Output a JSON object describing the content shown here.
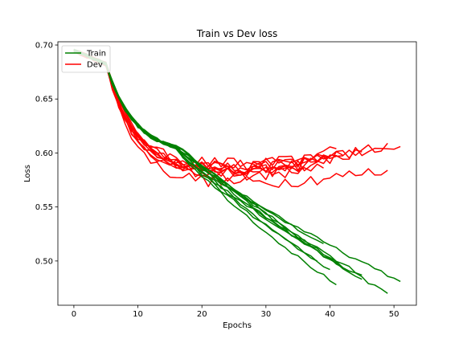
{
  "chart_data": {
    "type": "line",
    "title": "Train vs Dev loss",
    "xlabel": "Epochs",
    "ylabel": "Loss",
    "xlim": [
      -2.5,
      53.5
    ],
    "ylim": [
      0.459,
      0.703
    ],
    "xticks": [
      0,
      10,
      20,
      30,
      40,
      50
    ],
    "yticks": [
      0.5,
      0.55,
      0.6,
      0.65,
      0.7
    ],
    "xtick_labels": [
      "0",
      "10",
      "20",
      "30",
      "40",
      "50"
    ],
    "ytick_labels": [
      "0.50",
      "0.55",
      "0.60",
      "0.65",
      "0.70"
    ],
    "grid": false,
    "legend": {
      "position": "top-left",
      "entries": [
        {
          "label": "Train",
          "color": "#008000"
        },
        {
          "label": "Dev",
          "color": "#ff0000"
        }
      ]
    },
    "colors": {
      "train": "#008000",
      "dev": "#ff0000"
    },
    "train_runs": [
      {
        "end_epoch": 41,
        "final_loss": 0.478
      },
      {
        "end_epoch": 45,
        "final_loss": 0.483
      },
      {
        "end_epoch": 49,
        "final_loss": 0.47
      },
      {
        "end_epoch": 51,
        "final_loss": 0.481
      },
      {
        "end_epoch": 40,
        "final_loss": 0.492
      },
      {
        "end_epoch": 42,
        "final_loss": 0.494
      },
      {
        "end_epoch": 38,
        "final_loss": 0.5
      },
      {
        "end_epoch": 39,
        "final_loss": 0.516
      },
      {
        "end_epoch": 45,
        "final_loss": 0.487
      },
      {
        "end_epoch": 36,
        "final_loss": 0.517
      }
    ],
    "dev_runs": [
      {
        "end_epoch": 51,
        "min_loss": 0.589,
        "final_loss": 0.606
      },
      {
        "end_epoch": 49,
        "min_loss": 0.588,
        "final_loss": 0.609
      },
      {
        "end_epoch": 45,
        "min_loss": 0.586,
        "final_loss": 0.601
      },
      {
        "end_epoch": 41,
        "min_loss": 0.585,
        "final_loss": 0.604
      },
      {
        "end_epoch": 40,
        "min_loss": 0.578,
        "final_loss": 0.596
      },
      {
        "end_epoch": 49,
        "min_loss": 0.572,
        "final_loss": 0.584
      },
      {
        "end_epoch": 42,
        "min_loss": 0.581,
        "final_loss": 0.598
      },
      {
        "end_epoch": 38,
        "min_loss": 0.583,
        "final_loss": 0.592
      },
      {
        "end_epoch": 36,
        "min_loss": 0.584,
        "final_loss": 0.588
      },
      {
        "end_epoch": 39,
        "min_loss": 0.58,
        "final_loss": 0.586
      }
    ]
  }
}
